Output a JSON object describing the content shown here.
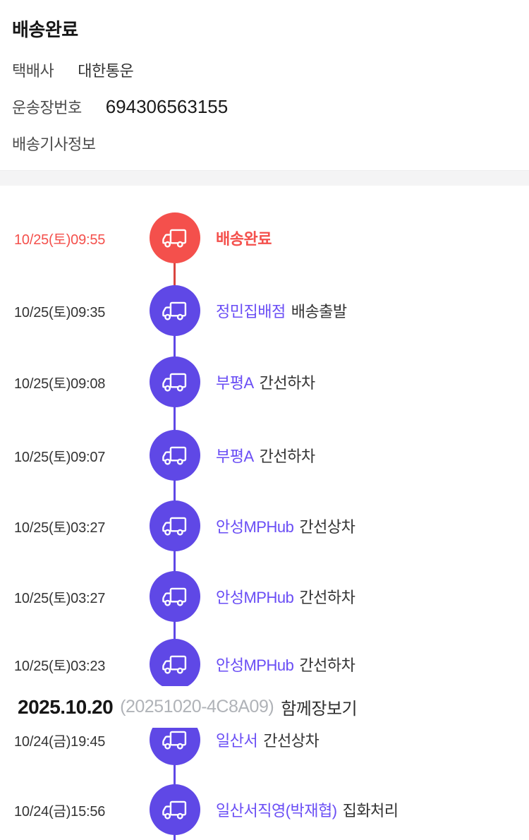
{
  "header": {
    "title": "배송완료",
    "courier_label": "택배사",
    "courier_value": "대한통운",
    "tracking_label": "운송장번호",
    "tracking_value": "694306563155",
    "driver_info_label": "배송기사정보"
  },
  "colors": {
    "red": "#f4504c",
    "red_line": "#da4540",
    "purple": "#5f48e6",
    "purple_text": "#6a4ef5"
  },
  "timeline": {
    "rows": [
      {
        "time": "10/25(토)09:55",
        "place": "",
        "action": "배송완료",
        "state": "delivered"
      },
      {
        "time": "10/25(토)09:35",
        "place": "정민집배점",
        "action": "배송출발",
        "state": "normal"
      },
      {
        "time": "10/25(토)09:08",
        "place": "부평A",
        "action": "간선하차",
        "state": "normal"
      },
      {
        "time": "10/25(토)09:07",
        "place": "부평A",
        "action": "간선하차",
        "state": "normal"
      },
      {
        "time": "10/25(토)03:27",
        "place": "안성MPHub",
        "action": "간선상차",
        "state": "normal"
      },
      {
        "time": "10/25(토)03:27",
        "place": "안성MPHub",
        "action": "간선하차",
        "state": "normal"
      },
      {
        "time": "10/25(토)03:23",
        "place": "안성MPHub",
        "action": "간선하차",
        "state": "normal"
      },
      {
        "time": "10/24(금)19:45",
        "place": "일산서",
        "action": "간선상차",
        "state": "normal"
      },
      {
        "time": "10/24(금)15:56",
        "place": "일산서직영(박재협)",
        "action": "집화처리",
        "state": "normal"
      }
    ],
    "date_divider": {
      "date": "2025.10.20",
      "code": "(20251020-4C8A09)",
      "suffix": "함께장보기"
    }
  }
}
